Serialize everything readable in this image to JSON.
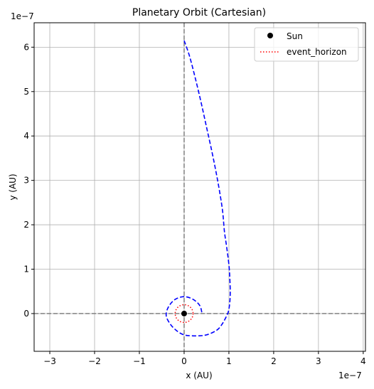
{
  "chart_data": {
    "type": "line",
    "title": "Planetary Orbit (Cartesian)",
    "xlabel": "x (AU)",
    "ylabel": "y (AU)",
    "x_offset_text": "1e−7",
    "y_offset_text": "1e−7",
    "scale_factor": 1e-07,
    "xlim": [
      -3.35,
      4.05
    ],
    "ylim": [
      -0.85,
      6.55
    ],
    "x_ticks": [
      -3,
      -2,
      -1,
      0,
      1,
      2,
      3,
      4
    ],
    "y_ticks": [
      0,
      1,
      2,
      3,
      4,
      5,
      6
    ],
    "x_tick_labels": [
      "−3",
      "−2",
      "−1",
      "0",
      "1",
      "2",
      "3",
      "4"
    ],
    "y_tick_labels": [
      "0",
      "1",
      "2",
      "3",
      "4",
      "5",
      "6"
    ],
    "grid": true,
    "legend_placement": "top-right",
    "legend": [
      {
        "label": "Sun",
        "marker": "dot",
        "color": "#000000"
      },
      {
        "label": "event_horizon",
        "style": "dotted",
        "color": "#ff0000"
      }
    ],
    "sun": {
      "x": 0,
      "y": 0
    },
    "event_horizon_radius": 0.2,
    "reference_lines": {
      "x": 0,
      "y": 0,
      "color": "#808080"
    },
    "orbit": {
      "color": "#0000ff",
      "style": "dashed",
      "x": [
        0.0,
        0.12,
        0.25,
        0.38,
        0.5,
        0.62,
        0.72,
        0.8,
        0.86,
        0.9,
        0.95,
        1.0,
        1.02,
        1.03,
        1.02,
        0.99,
        0.95,
        0.9,
        0.84,
        0.76,
        0.65,
        0.5,
        0.35,
        0.15,
        0.0,
        -0.15,
        -0.3,
        -0.4,
        -0.35,
        -0.2,
        0.0,
        0.2,
        0.35,
        0.4
      ],
      "y": [
        6.15,
        5.8,
        5.3,
        4.75,
        4.2,
        3.65,
        3.15,
        2.7,
        2.3,
        1.85,
        1.5,
        1.1,
        0.8,
        0.5,
        0.25,
        0.05,
        -0.05,
        -0.15,
        -0.25,
        -0.35,
        -0.42,
        -0.48,
        -0.5,
        -0.5,
        -0.48,
        -0.4,
        -0.25,
        -0.05,
        0.15,
        0.32,
        0.38,
        0.32,
        0.18,
        0.0
      ]
    }
  }
}
